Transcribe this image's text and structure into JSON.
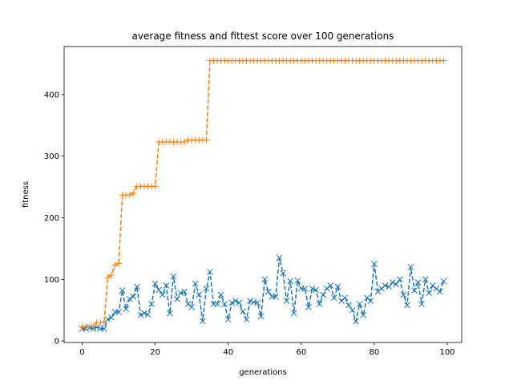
{
  "chart_data": {
    "type": "line",
    "title": "average fitness and fittest score over 100 generations",
    "xlabel": "generations",
    "ylabel": "fitness",
    "xlim": [
      -4.95,
      103.95
    ],
    "ylim": [
      -2.5,
      478
    ],
    "xticks": [
      0,
      20,
      40,
      60,
      80,
      100
    ],
    "yticks": [
      0,
      100,
      200,
      300,
      400
    ],
    "grid": false,
    "legend": "none",
    "x": [
      0,
      1,
      2,
      3,
      4,
      5,
      6,
      7,
      8,
      9,
      10,
      11,
      12,
      13,
      14,
      15,
      16,
      17,
      18,
      19,
      20,
      21,
      22,
      23,
      24,
      25,
      26,
      27,
      28,
      29,
      30,
      31,
      32,
      33,
      34,
      35,
      36,
      37,
      38,
      39,
      40,
      41,
      42,
      43,
      44,
      45,
      46,
      47,
      48,
      49,
      50,
      51,
      52,
      53,
      54,
      55,
      56,
      57,
      58,
      59,
      60,
      61,
      62,
      63,
      64,
      65,
      66,
      67,
      68,
      69,
      70,
      71,
      72,
      73,
      74,
      75,
      76,
      77,
      78,
      79,
      80,
      81,
      82,
      83,
      84,
      85,
      86,
      87,
      88,
      89,
      90,
      91,
      92,
      93,
      94,
      95,
      96,
      97,
      98,
      99
    ],
    "series": [
      {
        "color": "#1f77b4",
        "marker": "x",
        "linestyle": "dashed",
        "values": [
          20,
          20,
          22,
          20,
          22,
          20,
          20,
          35,
          38,
          47,
          47,
          82,
          52,
          68,
          72,
          88,
          42,
          45,
          43,
          60,
          93,
          83,
          75,
          90,
          45,
          105,
          68,
          78,
          80,
          60,
          55,
          93,
          75,
          32,
          85,
          112,
          60,
          60,
          75,
          60,
          35,
          62,
          65,
          62,
          48,
          35,
          65,
          63,
          62,
          40,
          100,
          80,
          72,
          72,
          135,
          110,
          65,
          97,
          45,
          98,
          85,
          85,
          55,
          85,
          83,
          60,
          75,
          85,
          90,
          70,
          88,
          65,
          70,
          58,
          50,
          32,
          60,
          42,
          70,
          65,
          125,
          80,
          85,
          90,
          88,
          95,
          92,
          100,
          75,
          58,
          120,
          82,
          95,
          60,
          100,
          78,
          90,
          85,
          80,
          97
        ]
      },
      {
        "color": "#ff7f0e",
        "marker": "+",
        "linestyle": "dashed",
        "values": [
          23,
          23,
          23,
          23,
          30,
          30,
          30,
          103,
          107,
          123,
          126,
          237,
          237,
          237,
          240,
          251,
          251,
          251,
          251,
          251,
          251,
          323,
          323,
          323,
          323,
          323,
          323,
          323,
          323,
          326,
          326,
          326,
          326,
          326,
          326,
          455,
          455,
          455,
          455,
          455,
          455,
          455,
          455,
          455,
          455,
          455,
          455,
          455,
          455,
          455,
          455,
          455,
          455,
          455,
          455,
          455,
          455,
          455,
          455,
          455,
          455,
          455,
          455,
          455,
          455,
          455,
          455,
          455,
          455,
          455,
          455,
          455,
          455,
          455,
          455,
          455,
          455,
          455,
          455,
          455,
          455,
          455,
          455,
          455,
          455,
          455,
          455,
          455,
          455,
          455,
          455,
          455,
          455,
          455,
          455,
          455,
          455,
          455,
          455,
          455
        ]
      }
    ]
  }
}
